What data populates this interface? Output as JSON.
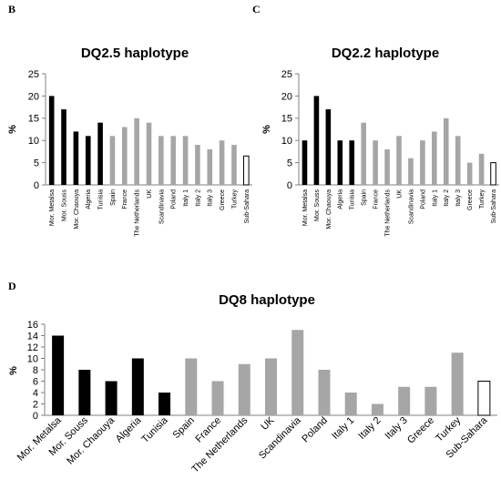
{
  "panels": [
    {
      "letter": "B"
    },
    {
      "letter": "C"
    },
    {
      "letter": "D"
    }
  ],
  "colors": {
    "dark": "#000000",
    "light": "#a6a6a6",
    "outline": "#000000",
    "axis": "#808080"
  },
  "chart_data": [
    {
      "type": "bar",
      "title": "DQ2.5 haplotype",
      "xlabel": "",
      "ylabel": "%",
      "ylim": [
        0,
        25
      ],
      "yticks": [
        0,
        5,
        10,
        15,
        20,
        25
      ],
      "grid": false,
      "categories": [
        "Mor. Metalsa",
        "Mor. Souss",
        "Mor. Chaouya",
        "Algeria",
        "Tunisia",
        "Spain",
        "France",
        "The Netherlands",
        "UK",
        "Scandinavia",
        "Poland",
        "Italy 1",
        "Italy 2",
        "Italy 3",
        "Greece",
        "Turkey",
        "Sub-Sahara"
      ],
      "values": [
        20,
        17,
        12,
        11,
        14,
        11,
        13,
        15,
        14,
        11,
        11,
        11,
        9,
        8,
        10,
        9,
        6.5
      ],
      "fill": [
        "dark",
        "dark",
        "dark",
        "dark",
        "dark",
        "light",
        "light",
        "light",
        "light",
        "light",
        "light",
        "light",
        "light",
        "light",
        "light",
        "light",
        "outline"
      ]
    },
    {
      "type": "bar",
      "title": "DQ2.2 haplotype",
      "xlabel": "",
      "ylabel": "%",
      "ylim": [
        0,
        25
      ],
      "yticks": [
        0,
        5,
        10,
        15,
        20,
        25
      ],
      "grid": false,
      "categories": [
        "Mor. Metalsa",
        "Mor. Souss",
        "Mor. Chaouya",
        "Algeria",
        "Tunisia",
        "Spain",
        "France",
        "The Netherlands",
        "UK",
        "Scandinavia",
        "Poland",
        "Italy 1",
        "Italy 2",
        "Italy 3",
        "Greece",
        "Turkey",
        "Sub-Sahara"
      ],
      "values": [
        10,
        20,
        17,
        10,
        10,
        14,
        10,
        8,
        11,
        6,
        10,
        12,
        15,
        11,
        5,
        7,
        5
      ],
      "fill": [
        "dark",
        "dark",
        "dark",
        "dark",
        "dark",
        "light",
        "light",
        "light",
        "light",
        "light",
        "light",
        "light",
        "light",
        "light",
        "light",
        "light",
        "outline"
      ]
    },
    {
      "type": "bar",
      "title": "DQ8 haplotype",
      "xlabel": "",
      "ylabel": "%",
      "ylim": [
        0,
        16
      ],
      "yticks": [
        0,
        2,
        4,
        6,
        8,
        10,
        12,
        14,
        16
      ],
      "grid": false,
      "categories": [
        "Mor. Metalsa",
        "Mor. Souss",
        "Mor. Chaouya",
        "Algeria",
        "Tunisia",
        "Spain",
        "France",
        "The Netherlands",
        "UK",
        "Scandinavia",
        "Poland",
        "Italy 1",
        "Italy 2",
        "Italy 3",
        "Greece",
        "Turkey",
        "Sub-Sahara"
      ],
      "values": [
        14,
        8,
        6,
        10,
        4,
        10,
        6,
        9,
        10,
        15,
        8,
        4,
        2,
        5,
        5,
        11,
        6
      ],
      "fill": [
        "dark",
        "dark",
        "dark",
        "dark",
        "dark",
        "light",
        "light",
        "light",
        "light",
        "light",
        "light",
        "light",
        "light",
        "light",
        "light",
        "light",
        "outline"
      ]
    }
  ]
}
